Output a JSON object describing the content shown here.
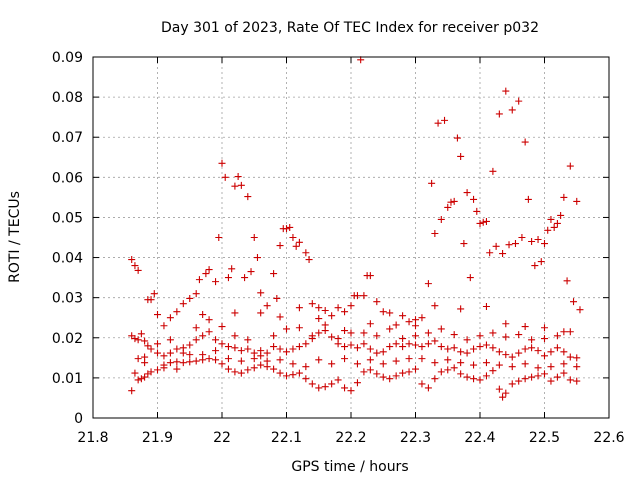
{
  "chart_data": {
    "type": "scatter",
    "title": "Day 301 of 2023, Rate Of TEC Index for receiver p032",
    "xlabel": "GPS time / hours",
    "ylabel": "ROTI / TECUs",
    "xlim": [
      21.8,
      22.6
    ],
    "ylim": [
      0,
      0.09
    ],
    "xticks": [
      "21.8",
      "21.9",
      "22",
      "22.1",
      "22.2",
      "22.3",
      "22.4",
      "22.5",
      "22.6"
    ],
    "yticks": [
      "0",
      "0.01",
      "0.02",
      "0.03",
      "0.04",
      "0.05",
      "0.06",
      "0.07",
      "0.08",
      "0.09"
    ],
    "grid": true,
    "marker": "+",
    "color": "#cc0000",
    "points": [
      [
        21.86,
        0.0395
      ],
      [
        21.865,
        0.038
      ],
      [
        21.87,
        0.0368
      ],
      [
        21.885,
        0.0295
      ],
      [
        21.89,
        0.0295
      ],
      [
        21.895,
        0.031
      ],
      [
        21.9,
        0.0258
      ],
      [
        21.91,
        0.023
      ],
      [
        21.92,
        0.025
      ],
      [
        21.93,
        0.0265
      ],
      [
        21.94,
        0.0285
      ],
      [
        21.95,
        0.0298
      ],
      [
        21.96,
        0.031
      ],
      [
        21.965,
        0.0345
      ],
      [
        21.975,
        0.036
      ],
      [
        21.98,
        0.037
      ],
      [
        21.99,
        0.034
      ],
      [
        21.995,
        0.045
      ],
      [
        22.0,
        0.0635
      ],
      [
        22.005,
        0.06
      ],
      [
        22.01,
        0.035
      ],
      [
        22.015,
        0.0372
      ],
      [
        22.02,
        0.0578
      ],
      [
        22.025,
        0.0602
      ],
      [
        22.03,
        0.058
      ],
      [
        22.035,
        0.035
      ],
      [
        22.04,
        0.0552
      ],
      [
        22.045,
        0.0365
      ],
      [
        22.05,
        0.045
      ],
      [
        22.055,
        0.04
      ],
      [
        22.06,
        0.0312
      ],
      [
        22.07,
        0.028
      ],
      [
        22.08,
        0.036
      ],
      [
        22.085,
        0.0298
      ],
      [
        22.09,
        0.043
      ],
      [
        22.095,
        0.0472
      ],
      [
        22.1,
        0.0472
      ],
      [
        22.105,
        0.0475
      ],
      [
        22.11,
        0.045
      ],
      [
        22.115,
        0.0428
      ],
      [
        22.12,
        0.0438
      ],
      [
        22.13,
        0.0412
      ],
      [
        22.135,
        0.0395
      ],
      [
        22.14,
        0.0285
      ],
      [
        22.15,
        0.0275
      ],
      [
        22.16,
        0.0268
      ],
      [
        22.17,
        0.0255
      ],
      [
        22.18,
        0.0275
      ],
      [
        22.19,
        0.0265
      ],
      [
        22.2,
        0.028
      ],
      [
        22.205,
        0.0305
      ],
      [
        22.21,
        0.0305
      ],
      [
        22.215,
        0.0893
      ],
      [
        22.22,
        0.0305
      ],
      [
        22.225,
        0.0355
      ],
      [
        22.23,
        0.0355
      ],
      [
        22.24,
        0.029
      ],
      [
        22.25,
        0.0265
      ],
      [
        22.26,
        0.0262
      ],
      [
        22.28,
        0.0255
      ],
      [
        22.29,
        0.024
      ],
      [
        22.3,
        0.0245
      ],
      [
        22.31,
        0.025
      ],
      [
        22.32,
        0.0335
      ],
      [
        22.325,
        0.0585
      ],
      [
        22.33,
        0.046
      ],
      [
        22.335,
        0.0735
      ],
      [
        22.34,
        0.0495
      ],
      [
        22.345,
        0.0742
      ],
      [
        22.35,
        0.0525
      ],
      [
        22.355,
        0.0538
      ],
      [
        22.36,
        0.054
      ],
      [
        22.365,
        0.0698
      ],
      [
        22.37,
        0.0652
      ],
      [
        22.375,
        0.0435
      ],
      [
        22.38,
        0.0562
      ],
      [
        22.385,
        0.035
      ],
      [
        22.39,
        0.0545
      ],
      [
        22.395,
        0.0515
      ],
      [
        22.4,
        0.0485
      ],
      [
        22.405,
        0.0488
      ],
      [
        22.41,
        0.049
      ],
      [
        22.415,
        0.0412
      ],
      [
        22.42,
        0.0615
      ],
      [
        22.425,
        0.0428
      ],
      [
        22.43,
        0.0758
      ],
      [
        22.435,
        0.041
      ],
      [
        22.44,
        0.0815
      ],
      [
        22.445,
        0.0432
      ],
      [
        22.45,
        0.0768
      ],
      [
        22.455,
        0.0435
      ],
      [
        22.46,
        0.079
      ],
      [
        22.465,
        0.045
      ],
      [
        22.47,
        0.0688
      ],
      [
        22.475,
        0.0545
      ],
      [
        22.48,
        0.044
      ],
      [
        22.485,
        0.038
      ],
      [
        22.49,
        0.0445
      ],
      [
        22.495,
        0.039
      ],
      [
        22.5,
        0.0435
      ],
      [
        22.505,
        0.0468
      ],
      [
        22.51,
        0.0495
      ],
      [
        22.515,
        0.0475
      ],
      [
        22.52,
        0.0485
      ],
      [
        22.525,
        0.0505
      ],
      [
        22.53,
        0.055
      ],
      [
        22.535,
        0.0342
      ],
      [
        22.54,
        0.0628
      ],
      [
        22.545,
        0.029
      ],
      [
        22.55,
        0.054
      ],
      [
        22.555,
        0.027
      ],
      [
        21.86,
        0.0068
      ],
      [
        21.865,
        0.0112
      ],
      [
        21.87,
        0.0095
      ],
      [
        21.875,
        0.0098
      ],
      [
        21.88,
        0.0102
      ],
      [
        21.885,
        0.011
      ],
      [
        21.89,
        0.0115
      ],
      [
        21.9,
        0.012
      ],
      [
        21.91,
        0.0125
      ],
      [
        21.92,
        0.0138
      ],
      [
        21.93,
        0.014
      ],
      [
        21.94,
        0.0138
      ],
      [
        21.95,
        0.014
      ],
      [
        21.96,
        0.0142
      ],
      [
        21.97,
        0.0145
      ],
      [
        21.98,
        0.0148
      ],
      [
        21.99,
        0.0145
      ],
      [
        22.0,
        0.0135
      ],
      [
        22.01,
        0.0122
      ],
      [
        22.02,
        0.0115
      ],
      [
        22.03,
        0.0112
      ],
      [
        22.04,
        0.012
      ],
      [
        22.05,
        0.0125
      ],
      [
        22.06,
        0.0132
      ],
      [
        22.07,
        0.0128
      ],
      [
        22.08,
        0.0122
      ],
      [
        22.09,
        0.0112
      ],
      [
        22.1,
        0.0105
      ],
      [
        22.11,
        0.0108
      ],
      [
        22.12,
        0.0112
      ],
      [
        22.13,
        0.0098
      ],
      [
        22.14,
        0.0085
      ],
      [
        22.15,
        0.0075
      ],
      [
        22.16,
        0.0078
      ],
      [
        22.17,
        0.0085
      ],
      [
        22.18,
        0.0095
      ],
      [
        22.19,
        0.0075
      ],
      [
        22.2,
        0.0068
      ],
      [
        22.21,
        0.0088
      ],
      [
        22.22,
        0.0115
      ],
      [
        22.23,
        0.012
      ],
      [
        22.24,
        0.011
      ],
      [
        22.25,
        0.0102
      ],
      [
        22.26,
        0.0098
      ],
      [
        22.27,
        0.0105
      ],
      [
        22.28,
        0.0112
      ],
      [
        22.29,
        0.0115
      ],
      [
        22.3,
        0.0122
      ],
      [
        22.31,
        0.0085
      ],
      [
        22.32,
        0.0075
      ],
      [
        22.33,
        0.0098
      ],
      [
        22.34,
        0.0115
      ],
      [
        22.35,
        0.012
      ],
      [
        22.36,
        0.0125
      ],
      [
        22.37,
        0.011
      ],
      [
        22.38,
        0.0102
      ],
      [
        22.39,
        0.0098
      ],
      [
        22.4,
        0.0095
      ],
      [
        22.41,
        0.0105
      ],
      [
        22.42,
        0.0118
      ],
      [
        22.43,
        0.0072
      ],
      [
        22.435,
        0.0052
      ],
      [
        22.44,
        0.0062
      ],
      [
        22.45,
        0.0085
      ],
      [
        22.46,
        0.0092
      ],
      [
        22.47,
        0.0098
      ],
      [
        22.48,
        0.0102
      ],
      [
        22.49,
        0.0105
      ],
      [
        22.5,
        0.011
      ],
      [
        22.51,
        0.0092
      ],
      [
        22.52,
        0.0102
      ],
      [
        22.53,
        0.0112
      ],
      [
        22.54,
        0.0095
      ],
      [
        22.55,
        0.0092
      ],
      [
        21.86,
        0.0205
      ],
      [
        21.865,
        0.0198
      ],
      [
        21.87,
        0.0195
      ],
      [
        21.875,
        0.021
      ],
      [
        21.88,
        0.0192
      ],
      [
        21.885,
        0.018
      ],
      [
        21.89,
        0.0172
      ],
      [
        21.9,
        0.0162
      ],
      [
        21.91,
        0.0155
      ],
      [
        21.92,
        0.0162
      ],
      [
        21.93,
        0.0172
      ],
      [
        21.94,
        0.0175
      ],
      [
        21.95,
        0.0182
      ],
      [
        21.96,
        0.0195
      ],
      [
        21.97,
        0.0205
      ],
      [
        21.98,
        0.0215
      ],
      [
        21.99,
        0.0195
      ],
      [
        22.0,
        0.0185
      ],
      [
        22.01,
        0.0178
      ],
      [
        22.02,
        0.0175
      ],
      [
        22.03,
        0.0168
      ],
      [
        22.04,
        0.0172
      ],
      [
        22.05,
        0.0162
      ],
      [
        22.06,
        0.0155
      ],
      [
        22.07,
        0.0162
      ],
      [
        22.08,
        0.0178
      ],
      [
        22.09,
        0.0172
      ],
      [
        22.1,
        0.0165
      ],
      [
        22.11,
        0.0172
      ],
      [
        22.12,
        0.0178
      ],
      [
        22.13,
        0.0185
      ],
      [
        22.14,
        0.0198
      ],
      [
        22.15,
        0.0212
      ],
      [
        22.16,
        0.0218
      ],
      [
        22.17,
        0.0202
      ],
      [
        22.18,
        0.0185
      ],
      [
        22.19,
        0.0178
      ],
      [
        22.2,
        0.0182
      ],
      [
        22.21,
        0.0175
      ],
      [
        22.22,
        0.0185
      ],
      [
        22.23,
        0.0172
      ],
      [
        22.24,
        0.0162
      ],
      [
        22.25,
        0.0165
      ],
      [
        22.26,
        0.0178
      ],
      [
        22.27,
        0.0185
      ],
      [
        22.28,
        0.0178
      ],
      [
        22.29,
        0.0185
      ],
      [
        22.3,
        0.0182
      ],
      [
        22.31,
        0.0178
      ],
      [
        22.32,
        0.0185
      ],
      [
        22.33,
        0.0192
      ],
      [
        22.34,
        0.0178
      ],
      [
        22.35,
        0.0172
      ],
      [
        22.36,
        0.0175
      ],
      [
        22.37,
        0.0165
      ],
      [
        22.38,
        0.0162
      ],
      [
        22.39,
        0.0172
      ],
      [
        22.4,
        0.0178
      ],
      [
        22.41,
        0.0182
      ],
      [
        22.42,
        0.0175
      ],
      [
        22.43,
        0.0165
      ],
      [
        22.44,
        0.0158
      ],
      [
        22.45,
        0.0152
      ],
      [
        22.46,
        0.0162
      ],
      [
        22.47,
        0.0172
      ],
      [
        22.48,
        0.0175
      ],
      [
        22.49,
        0.0168
      ],
      [
        22.5,
        0.0155
      ],
      [
        22.51,
        0.0165
      ],
      [
        22.52,
        0.0175
      ],
      [
        22.53,
        0.0165
      ],
      [
        22.54,
        0.0152
      ],
      [
        22.55,
        0.015
      ],
      [
        21.87,
        0.0148
      ],
      [
        21.88,
        0.0138
      ],
      [
        21.9,
        0.0185
      ],
      [
        21.92,
        0.0195
      ],
      [
        21.94,
        0.0162
      ],
      [
        21.96,
        0.0225
      ],
      [
        21.98,
        0.0245
      ],
      [
        22.0,
        0.0228
      ],
      [
        22.02,
        0.0205
      ],
      [
        22.04,
        0.0195
      ],
      [
        22.06,
        0.0168
      ],
      [
        22.08,
        0.0205
      ],
      [
        22.1,
        0.0222
      ],
      [
        22.12,
        0.0225
      ],
      [
        22.14,
        0.0205
      ],
      [
        22.16,
        0.0232
      ],
      [
        22.18,
        0.0198
      ],
      [
        22.2,
        0.0212
      ],
      [
        22.22,
        0.0212
      ],
      [
        22.24,
        0.0205
      ],
      [
        22.26,
        0.0222
      ],
      [
        22.28,
        0.0198
      ],
      [
        22.3,
        0.0205
      ],
      [
        22.32,
        0.0212
      ],
      [
        22.34,
        0.0222
      ],
      [
        22.36,
        0.0208
      ],
      [
        22.38,
        0.0195
      ],
      [
        22.4,
        0.0205
      ],
      [
        22.42,
        0.0212
      ],
      [
        22.44,
        0.0202
      ],
      [
        22.46,
        0.0208
      ],
      [
        22.48,
        0.0195
      ],
      [
        22.5,
        0.0198
      ],
      [
        22.52,
        0.0205
      ],
      [
        22.54,
        0.0215
      ],
      [
        21.88,
        0.0152
      ],
      [
        21.91,
        0.0132
      ],
      [
        21.93,
        0.0122
      ],
      [
        21.95,
        0.0158
      ],
      [
        21.97,
        0.0158
      ],
      [
        21.99,
        0.0168
      ],
      [
        22.01,
        0.0148
      ],
      [
        22.03,
        0.0142
      ],
      [
        22.05,
        0.0148
      ],
      [
        22.07,
        0.0142
      ],
      [
        22.09,
        0.0145
      ],
      [
        22.11,
        0.0135
      ],
      [
        22.13,
        0.0128
      ],
      [
        22.15,
        0.0145
      ],
      [
        22.17,
        0.0135
      ],
      [
        22.19,
        0.0148
      ],
      [
        22.21,
        0.0135
      ],
      [
        22.23,
        0.0145
      ],
      [
        22.25,
        0.0135
      ],
      [
        22.27,
        0.0142
      ],
      [
        22.29,
        0.0148
      ],
      [
        22.31,
        0.0148
      ],
      [
        22.33,
        0.0138
      ],
      [
        22.35,
        0.0145
      ],
      [
        22.37,
        0.0138
      ],
      [
        22.39,
        0.0132
      ],
      [
        22.41,
        0.0138
      ],
      [
        22.43,
        0.0132
      ],
      [
        22.45,
        0.0128
      ],
      [
        22.47,
        0.0135
      ],
      [
        22.49,
        0.0125
      ],
      [
        22.51,
        0.0128
      ],
      [
        22.53,
        0.0135
      ],
      [
        22.55,
        0.0128
      ],
      [
        21.97,
        0.0258
      ],
      [
        22.02,
        0.0262
      ],
      [
        22.06,
        0.0262
      ],
      [
        22.09,
        0.0252
      ],
      [
        22.12,
        0.0275
      ],
      [
        22.15,
        0.0248
      ],
      [
        22.19,
        0.0218
      ],
      [
        22.23,
        0.0235
      ],
      [
        22.27,
        0.0232
      ],
      [
        22.3,
        0.023
      ],
      [
        22.33,
        0.028
      ],
      [
        22.37,
        0.0272
      ],
      [
        22.41,
        0.0278
      ],
      [
        22.44,
        0.0235
      ],
      [
        22.47,
        0.0228
      ],
      [
        22.5,
        0.0225
      ],
      [
        22.53,
        0.0215
      ]
    ]
  }
}
